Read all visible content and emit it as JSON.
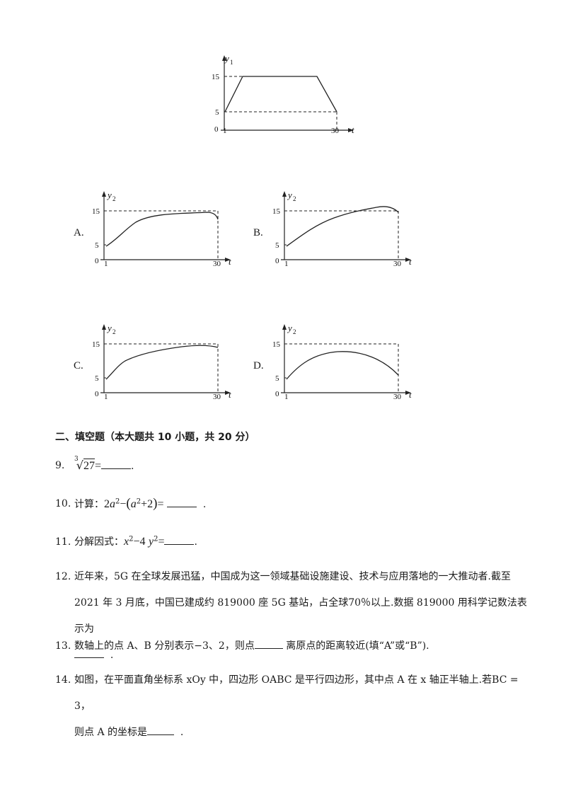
{
  "figures": {
    "main": {
      "ylabel": "y",
      "ysub": "1",
      "xlabel": "t",
      "y_ticks": [
        "15",
        "5"
      ],
      "x_ticks": [
        "0",
        "1",
        "30"
      ]
    },
    "options": [
      {
        "label": "A.",
        "ylabel": "y",
        "ysub": "2",
        "xlabel": "t",
        "y_ticks": [
          "15",
          "5"
        ],
        "x_ticks": [
          "0",
          "1",
          "30"
        ]
      },
      {
        "label": "B.",
        "ylabel": "y",
        "ysub": "2",
        "xlabel": "t",
        "y_ticks": [
          "15",
          "5"
        ],
        "x_ticks": [
          "0",
          "1",
          "30"
        ]
      },
      {
        "label": "C.",
        "ylabel": "y",
        "ysub": "2",
        "xlabel": "t",
        "y_ticks": [
          "15",
          "5"
        ],
        "x_ticks": [
          "0",
          "1",
          "30"
        ]
      },
      {
        "label": "D.",
        "ylabel": "y",
        "ysub": "2",
        "xlabel": "t",
        "y_ticks": [
          "15",
          "5"
        ],
        "x_ticks": [
          "0",
          "1",
          "30"
        ]
      }
    ]
  },
  "section_title": "二、填空题（本大题共 10 小题，共 20 分）",
  "questions": {
    "q9": {
      "num": "9.",
      "index": "3",
      "radicand": "27",
      "eq": "=",
      "end": "."
    },
    "q10": {
      "num": "10.",
      "prefix": "计算：",
      "expr1": "2",
      "var_a": "a",
      "exp2": "2",
      "minus": "−",
      "lparen": "(",
      "plus2": "+2",
      "rparen": ")",
      "eq": "=",
      "end": "."
    },
    "q11": {
      "num": "11.",
      "prefix": "分解因式：",
      "x": "x",
      "exp2": "2",
      "minus4": "−4",
      "y": "y",
      "eq": "=",
      "end": "."
    },
    "q12": {
      "num": "12.",
      "line1": "近年来，5G 在全球发展迅猛，中国成为这一领域基础设施建设、技术与应用落地的一大推动者.截至",
      "line2": "2021 年 3 月底，中国已建成约 819000 座 5G 基站，占全球70％以上.数据 819000 用科学记数法表示为",
      "end": "."
    },
    "q13": {
      "num": "13.",
      "text_a": "数轴上的点 A、B 分别表示−3、2，则点",
      "text_b": " 离原点的距离较近(填“A”或“B”)."
    },
    "q14": {
      "num": "14.",
      "line1": "如图，在平面直角坐标系 xOy 中，四边形 OABC 是平行四边形，其中点 A 在 x 轴正半轴上.若BC = 3，",
      "line2_a": "则点 A 的坐标是",
      "line2_end": "."
    }
  }
}
